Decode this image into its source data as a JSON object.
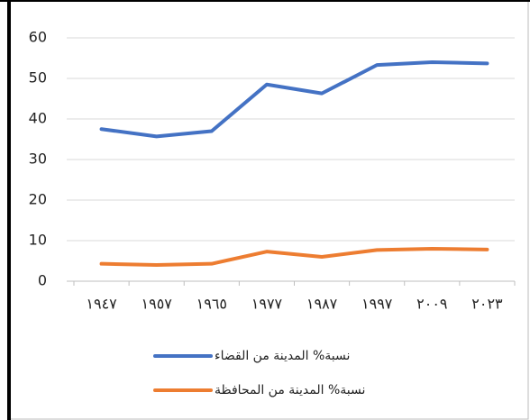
{
  "chart_data": {
    "type": "line",
    "categories": [
      "١٩٤٧",
      "١٩٥٧",
      "١٩٦٥",
      "١٩٧٧",
      "١٩٨٧",
      "١٩٩٧",
      "٢٠٠٩",
      "٢٠٢٣"
    ],
    "series": [
      {
        "name": "نسبة% المدينة  من القضاء",
        "color": "#4472c4",
        "values": [
          37.5,
          35.7,
          37,
          48.5,
          46.3,
          53.3,
          54,
          53.7
        ]
      },
      {
        "name": "نسبة% المدينة  من المحافظة",
        "color": "#ed7d31",
        "values": [
          4.3,
          4,
          4.3,
          7.3,
          6,
          7.7,
          8,
          7.8
        ]
      }
    ],
    "ylim": [
      0,
      60
    ],
    "yticks": [
      0,
      10,
      20,
      30,
      40,
      50,
      60
    ],
    "grid": true,
    "legend": "bottom"
  }
}
